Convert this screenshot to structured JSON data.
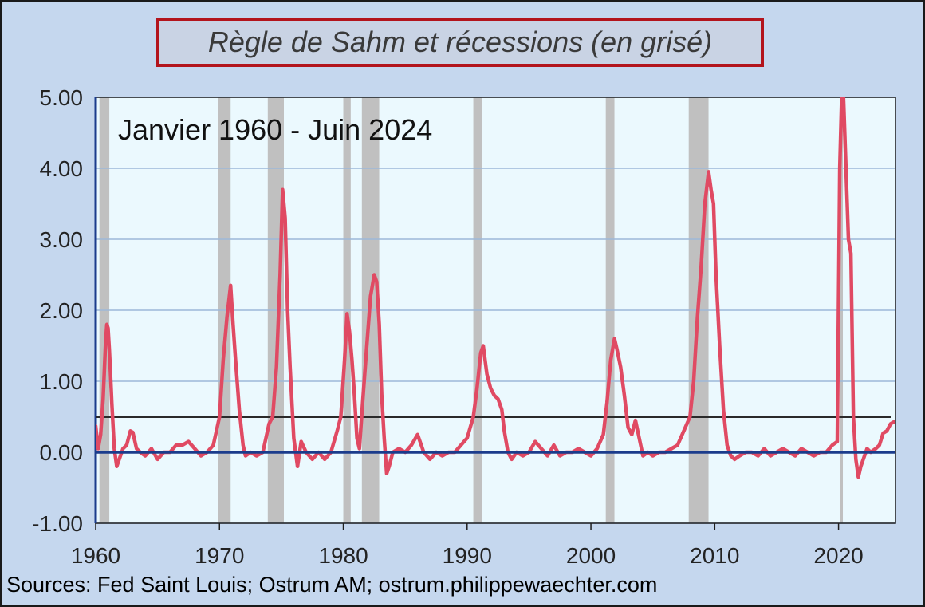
{
  "title": "Règle de Sahm et récessions (en grisé)",
  "source": "Sources: Fed Saint Louis; Ostrum AM; ostrum.philippewaechter.com",
  "colors": {
    "background": "#c5d7ee",
    "plot_background": "#ebf9fe",
    "series": "#e04a63",
    "recession": "#c0c0c0",
    "threshold": "#2a2a2a",
    "zero_axis": "#1b3c8c",
    "title_border": "#b3141c"
  },
  "chart_data": {
    "type": "line",
    "annotation": "Janvier 1960 - Juin 2024",
    "xlim": [
      1960,
      2024.6
    ],
    "ylim": [
      -1,
      5
    ],
    "x_ticks": [
      1960,
      1970,
      1980,
      1990,
      2000,
      2010,
      2020
    ],
    "x_tick_labels": [
      "1960",
      "1970",
      "1980",
      "1990",
      "2000",
      "2010",
      "2020"
    ],
    "y_ticks": [
      -1,
      0,
      1,
      2,
      3,
      4,
      5
    ],
    "y_tick_labels": [
      "-1.00",
      "0.00",
      "1.00",
      "2.00",
      "3.00",
      "4.00",
      "5.00"
    ],
    "grid": true,
    "threshold": 0.5,
    "recessions": [
      [
        1960.3,
        1961.1
      ],
      [
        1969.9,
        1970.9
      ],
      [
        1973.9,
        1975.2
      ],
      [
        1980.0,
        1980.6
      ],
      [
        1981.5,
        1982.9
      ],
      [
        1990.5,
        1991.2
      ],
      [
        2001.2,
        2001.9
      ],
      [
        2007.9,
        2009.5
      ],
      [
        2020.1,
        2020.35
      ]
    ],
    "series": [
      {
        "x": [
          1960.0,
          1960.2,
          1960.4,
          1960.6,
          1960.8,
          1960.9,
          1961.0,
          1961.1,
          1961.2,
          1961.3,
          1961.5,
          1961.7,
          1961.9,
          1962.2,
          1962.5,
          1962.8,
          1963.0,
          1963.3,
          1963.6,
          1964.0,
          1964.5,
          1965.0,
          1965.5,
          1966.0,
          1966.5,
          1967.0,
          1967.5,
          1968.0,
          1968.5,
          1969.0,
          1969.5,
          1970.0,
          1970.3,
          1970.6,
          1970.9,
          1971.1,
          1971.3,
          1971.6,
          1971.9,
          1972.1,
          1972.5,
          1973.0,
          1973.5,
          1974.0,
          1974.3,
          1974.6,
          1974.9,
          1975.1,
          1975.3,
          1975.5,
          1975.7,
          1976.0,
          1976.3,
          1976.6,
          1977.0,
          1977.5,
          1978.0,
          1978.5,
          1979.0,
          1979.5,
          1979.8,
          1980.1,
          1980.3,
          1980.5,
          1980.7,
          1980.9,
          1981.1,
          1981.3,
          1981.6,
          1981.9,
          1982.2,
          1982.5,
          1982.7,
          1982.9,
          1983.1,
          1983.3,
          1983.5,
          1983.7,
          1984.0,
          1984.5,
          1985.0,
          1985.5,
          1986.0,
          1986.5,
          1987.0,
          1987.5,
          1988.0,
          1988.5,
          1989.0,
          1989.5,
          1990.0,
          1990.5,
          1990.8,
          1991.1,
          1991.3,
          1991.6,
          1991.9,
          1992.2,
          1992.5,
          1992.8,
          1993.0,
          1993.3,
          1993.6,
          1994.0,
          1994.5,
          1995.0,
          1995.5,
          1996.0,
          1996.5,
          1997.0,
          1997.5,
          1998.0,
          1998.5,
          1999.0,
          1999.5,
          2000.0,
          2000.5,
          2001.0,
          2001.3,
          2001.6,
          2001.9,
          2002.1,
          2002.4,
          2002.7,
          2003.0,
          2003.3,
          2003.6,
          2003.9,
          2004.2,
          2004.6,
          2005.0,
          2005.5,
          2006.0,
          2006.5,
          2007.0,
          2007.5,
          2008.0,
          2008.3,
          2008.6,
          2008.9,
          2009.2,
          2009.5,
          2009.7,
          2009.9,
          2010.1,
          2010.4,
          2010.7,
          2011.0,
          2011.3,
          2011.6,
          2012.0,
          2012.5,
          2013.0,
          2013.5,
          2014.0,
          2014.5,
          2015.0,
          2015.5,
          2016.0,
          2016.5,
          2017.0,
          2017.5,
          2018.0,
          2018.5,
          2019.0,
          2019.5,
          2019.9,
          2020.1,
          2020.25,
          2020.4,
          2020.6,
          2020.8,
          2021.0,
          2021.2,
          2021.4,
          2021.6,
          2021.8,
          2022.0,
          2022.3,
          2022.6,
          2023.0,
          2023.3,
          2023.6,
          2023.9,
          2024.2,
          2024.5
        ],
        "values": [
          0.37,
          0.05,
          0.25,
          0.75,
          1.55,
          1.8,
          1.75,
          1.45,
          1.1,
          0.7,
          0.05,
          -0.2,
          -0.1,
          0.05,
          0.1,
          0.3,
          0.28,
          0.05,
          0.0,
          -0.05,
          0.05,
          -0.1,
          0.0,
          0.0,
          0.1,
          0.1,
          0.15,
          0.05,
          -0.05,
          0.0,
          0.1,
          0.5,
          1.3,
          1.9,
          2.35,
          1.8,
          1.3,
          0.6,
          0.1,
          -0.05,
          0.0,
          -0.05,
          0.0,
          0.4,
          0.5,
          1.2,
          2.5,
          3.7,
          3.3,
          2.0,
          1.2,
          0.2,
          -0.2,
          0.15,
          0.0,
          -0.1,
          0.0,
          -0.1,
          0.0,
          0.3,
          0.5,
          1.3,
          1.95,
          1.7,
          1.3,
          0.8,
          0.2,
          0.05,
          0.8,
          1.5,
          2.2,
          2.5,
          2.4,
          1.8,
          0.8,
          0.2,
          -0.3,
          -0.2,
          0.0,
          0.05,
          0.0,
          0.1,
          0.25,
          0.0,
          -0.1,
          0.0,
          -0.05,
          0.0,
          0.0,
          0.1,
          0.2,
          0.5,
          0.9,
          1.4,
          1.5,
          1.1,
          0.9,
          0.8,
          0.75,
          0.6,
          0.3,
          0.0,
          -0.1,
          0.0,
          -0.05,
          0.0,
          0.15,
          0.05,
          -0.05,
          0.1,
          -0.05,
          0.0,
          0.0,
          0.05,
          0.0,
          -0.05,
          0.05,
          0.25,
          0.7,
          1.3,
          1.6,
          1.45,
          1.2,
          0.8,
          0.35,
          0.25,
          0.45,
          0.2,
          -0.05,
          0.0,
          -0.05,
          0.0,
          0.0,
          0.05,
          0.1,
          0.3,
          0.5,
          1.0,
          1.9,
          2.6,
          3.5,
          3.95,
          3.7,
          3.5,
          2.5,
          1.5,
          0.6,
          0.1,
          -0.05,
          -0.1,
          -0.05,
          0.0,
          0.0,
          -0.05,
          0.05,
          -0.05,
          0.0,
          0.05,
          0.0,
          -0.05,
          0.05,
          0.0,
          -0.05,
          0.0,
          0.0,
          0.1,
          0.15,
          4.0,
          5.0,
          5.0,
          4.0,
          3.0,
          2.8,
          0.5,
          -0.1,
          -0.35,
          -0.2,
          -0.1,
          0.05,
          0.0,
          0.05,
          0.1,
          0.27,
          0.3,
          0.4,
          0.43
        ]
      }
    ]
  }
}
